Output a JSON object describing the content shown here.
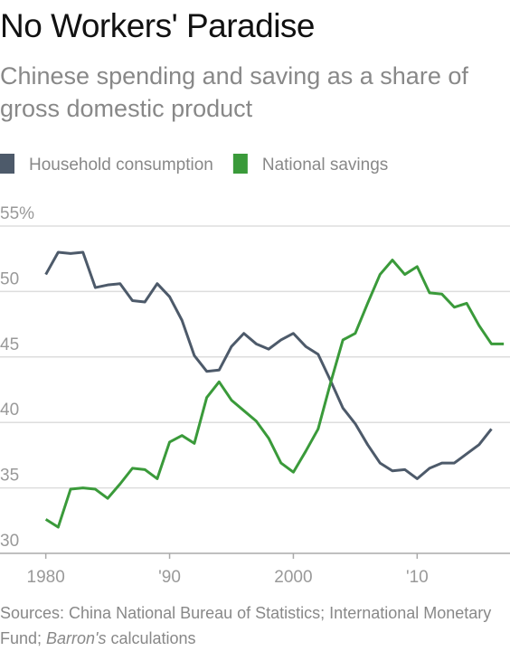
{
  "chart_data": {
    "type": "line",
    "title": "No Workers' Paradise",
    "subtitle": "Chinese spending and saving as a share of gross domestic product",
    "x": [
      1980,
      1981,
      1982,
      1983,
      1984,
      1985,
      1986,
      1987,
      1988,
      1989,
      1990,
      1991,
      1992,
      1993,
      1994,
      1995,
      1996,
      1997,
      1998,
      1999,
      2000,
      2001,
      2002,
      2003,
      2004,
      2005,
      2006,
      2007,
      2008,
      2009,
      2010,
      2011,
      2012,
      2013,
      2014,
      2015,
      2016,
      2017
    ],
    "series": [
      {
        "name": "Household consumption",
        "color": "#4d5a6a",
        "values": [
          51.3,
          53.0,
          52.9,
          53.0,
          50.3,
          50.5,
          50.6,
          49.3,
          49.2,
          50.6,
          49.6,
          47.8,
          45.1,
          43.9,
          44.0,
          45.8,
          46.8,
          46.0,
          45.6,
          46.3,
          46.8,
          45.8,
          45.2,
          43.2,
          41.1,
          39.9,
          38.3,
          36.9,
          36.3,
          36.4,
          35.7,
          36.5,
          36.9,
          36.9,
          37.6,
          38.3,
          39.5,
          null
        ]
      },
      {
        "name": "National savings",
        "color": "#3a9a3a",
        "values": [
          32.6,
          32.0,
          34.9,
          35.0,
          34.9,
          34.2,
          35.3,
          36.5,
          36.4,
          35.7,
          38.5,
          39.0,
          38.4,
          41.9,
          43.1,
          41.7,
          40.9,
          40.1,
          38.8,
          36.9,
          36.2,
          37.8,
          39.5,
          43.0,
          46.3,
          46.8,
          49.1,
          51.3,
          52.4,
          51.3,
          51.9,
          49.9,
          49.8,
          48.8,
          49.1,
          47.4,
          46.0,
          46.0
        ]
      }
    ],
    "xlim": [
      1976.3,
      2017.5
    ],
    "xticks": [
      1980,
      {
        "value": 1990,
        "label": "'90"
      },
      2000,
      {
        "value": 2010,
        "label": "'10"
      }
    ],
    "ylim": [
      30,
      55
    ],
    "yticks": [
      30,
      35,
      40,
      45,
      50,
      {
        "value": 55,
        "label": "55%"
      }
    ],
    "grid": true,
    "source_text": "Sources: China National Bureau of Statistics; International Monetary Fund; ",
    "source_italic": "Barron's",
    "source_end": " calculations"
  }
}
